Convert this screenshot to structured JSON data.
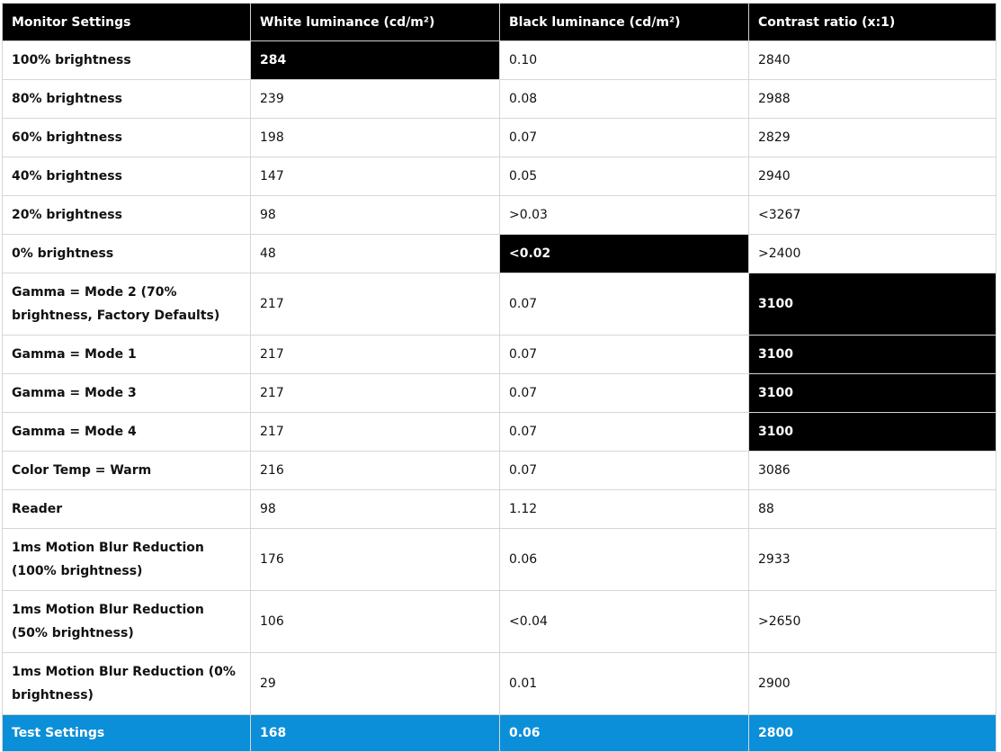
{
  "headers": [
    "Monitor Settings",
    "White luminance (cd/m²)",
    "Black luminance (cd/m²)",
    "Contrast ratio (x:1)"
  ],
  "rows": [
    {
      "label": "100% brightness",
      "white": "284",
      "black": "0.10",
      "contrast": "2840"
    },
    {
      "label": "80% brightness",
      "white": "239",
      "black": "0.08",
      "contrast": "2988"
    },
    {
      "label": "60% brightness",
      "white": "198",
      "black": "0.07",
      "contrast": "2829"
    },
    {
      "label": "40% brightness",
      "white": "147",
      "black": "0.05",
      "contrast": "2940"
    },
    {
      "label": "20% brightness",
      "white": "98",
      "black": ">0.03",
      "contrast": "<3267"
    },
    {
      "label": "0% brightness",
      "white": "48",
      "black": "<0.02",
      "contrast": ">2400"
    },
    {
      "label": "Gamma = Mode 2 (70% brightness, Factory Defaults)",
      "white": "217",
      "black": "0.07",
      "contrast": "3100"
    },
    {
      "label": "Gamma = Mode 1",
      "white": "217",
      "black": "0.07",
      "contrast": "3100"
    },
    {
      "label": "Gamma = Mode 3",
      "white": "217",
      "black": "0.07",
      "contrast": "3100"
    },
    {
      "label": "Gamma = Mode 4",
      "white": "217",
      "black": "0.07",
      "contrast": "3100"
    },
    {
      "label": "Color Temp = Warm",
      "white": "216",
      "black": "0.07",
      "contrast": "3086"
    },
    {
      "label": "Reader",
      "white": "98",
      "black": "1.12",
      "contrast": "88"
    },
    {
      "label": "1ms Motion Blur Reduction (100% brightness)",
      "white": "176",
      "black": "0.06",
      "contrast": "2933"
    },
    {
      "label": "1ms Motion Blur Reduction (50% brightness)",
      "white": "106",
      "black": "<0.04",
      "contrast": ">2650"
    },
    {
      "label": "1ms Motion Blur Reduction (0% brightness)",
      "white": "29",
      "black": "0.01",
      "contrast": "2900"
    }
  ],
  "footer": {
    "label": "Test Settings",
    "white": "168",
    "black": "0.06",
    "contrast": "2800"
  },
  "colors": {
    "header_bg": "#000000",
    "highlight_bg": "#000000",
    "footer_bg": "#0b8fd8"
  }
}
